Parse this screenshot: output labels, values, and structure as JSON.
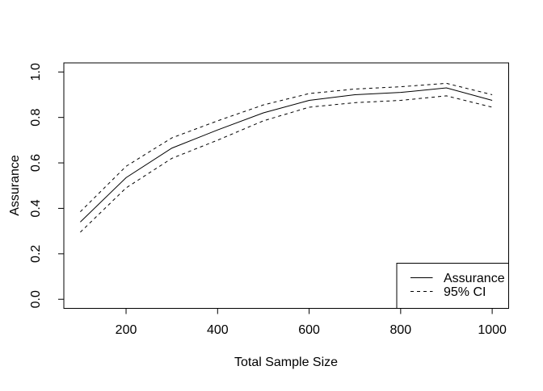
{
  "figure": {
    "background_color": "#ffffff",
    "line_color": "#000000"
  },
  "chart_data": {
    "type": "line",
    "title": "",
    "xlabel": "Total Sample Size",
    "ylabel": "Assurance",
    "xlim": [
      100,
      1000
    ],
    "ylim": [
      0,
      1
    ],
    "grid": false,
    "x_tick_values": [
      200,
      400,
      600,
      800,
      1000
    ],
    "x_tick_labels": [
      "200",
      "400",
      "600",
      "800",
      "1000"
    ],
    "y_tick_values": [
      0.0,
      0.2,
      0.4,
      0.6,
      0.8,
      1.0
    ],
    "y_tick_labels": [
      "0.0",
      "0.2",
      "0.4",
      "0.6",
      "0.8",
      "1.0"
    ],
    "x": [
      100,
      200,
      300,
      400,
      500,
      600,
      700,
      800,
      900,
      1000
    ],
    "series": [
      {
        "name": "Assurance",
        "style": "solid",
        "color": "#000000",
        "values": [
          0.34,
          0.535,
          0.665,
          0.745,
          0.82,
          0.875,
          0.9,
          0.91,
          0.93,
          0.875
        ]
      },
      {
        "name": "95% CI upper",
        "style": "dashed",
        "color": "#000000",
        "values": [
          0.385,
          0.585,
          0.71,
          0.785,
          0.855,
          0.905,
          0.925,
          0.935,
          0.95,
          0.9
        ]
      },
      {
        "name": "95% CI lower",
        "style": "dashed",
        "color": "#000000",
        "values": [
          0.295,
          0.49,
          0.62,
          0.7,
          0.785,
          0.845,
          0.865,
          0.875,
          0.895,
          0.845
        ]
      }
    ],
    "legend": {
      "position": "bottomright",
      "entries": [
        {
          "label": "Assurance",
          "line_style": "solid"
        },
        {
          "label": "95% CI",
          "line_style": "dashed"
        }
      ]
    }
  }
}
